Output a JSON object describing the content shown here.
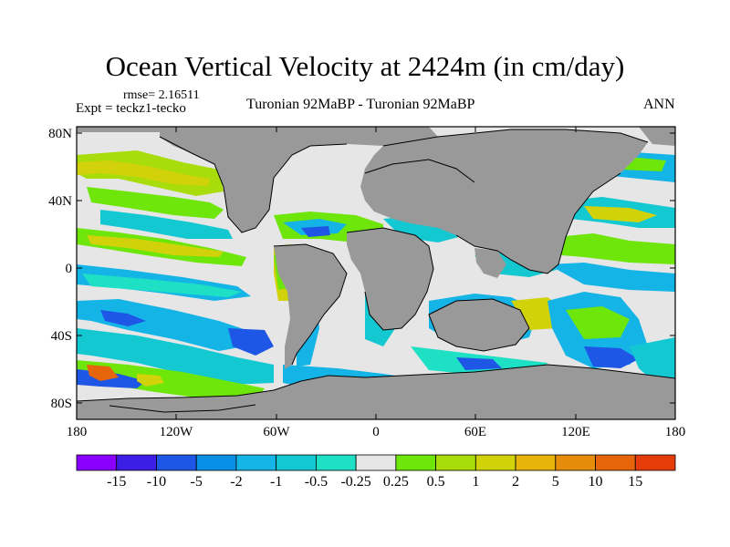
{
  "title": "Ocean Vertical Velocity at 2424m (in cm/day)",
  "subtitle": {
    "rmse": "rmse= 2.16511",
    "expt": "Expt = teckz1-tecko",
    "center": "Turonian  92MaBP - Turonian  92MaBP",
    "season": "ANN"
  },
  "map": {
    "projection": "cylindrical equidistant",
    "lon_range": [
      -180,
      180
    ],
    "lat_range": [
      -90,
      90
    ],
    "land_color": "#999999",
    "ocean_background": "#e6e6e6"
  },
  "axes": {
    "y_labels": [
      "80N",
      "40N",
      "0",
      "40S",
      "80S"
    ],
    "x_labels": [
      "180",
      "120W",
      "60W",
      "0",
      "60E",
      "120E",
      "180"
    ]
  },
  "colorbar": {
    "labels": [
      "-15",
      "-10",
      "-5",
      "-2",
      "-1",
      "-0.5",
      "-0.25",
      "0.25",
      "0.5",
      "1",
      "2",
      "5",
      "10",
      "15"
    ],
    "colors": [
      "#8a00ff",
      "#3d1ee6",
      "#1e56e6",
      "#0a8fe6",
      "#14b4e6",
      "#14c8d2",
      "#1ee0c4",
      "#e6e6e6",
      "#6ee60a",
      "#a8dc0a",
      "#d2d20a",
      "#e6b40a",
      "#e68c0a",
      "#e6640a",
      "#e63c0a"
    ]
  }
}
